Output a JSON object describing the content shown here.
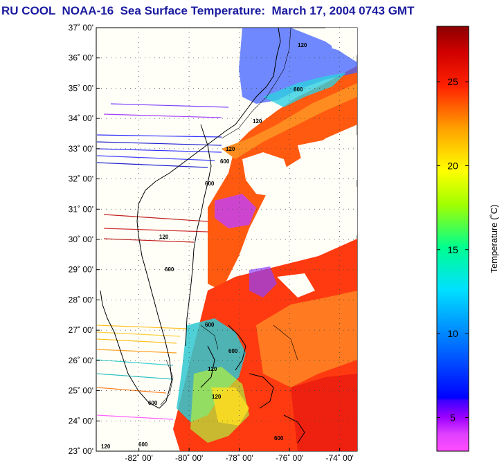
{
  "title": "RU COOL  NOAA-16  Sea Surface Temperature:  March 17, 2004 0743 GMT",
  "map": {
    "lat_ticks": [
      "37˚ 00'",
      "36˚ 00'",
      "35˚ 00'",
      "34˚ 00'",
      "33˚ 00'",
      "32˚ 00'",
      "31˚ 00'",
      "30˚ 00'",
      "29˚ 00'",
      "28˚ 00'",
      "27˚ 00'",
      "26˚ 00'",
      "25˚ 00'",
      "24˚ 00'",
      "23˚ 00'"
    ],
    "lon_ticks": [
      "-82˚ 00'",
      "-80˚ 00'",
      "-78˚ 00'",
      "-76˚ 00'",
      "-74˚ 00'"
    ],
    "contour_labels": [
      "120",
      "600",
      "120",
      "600",
      "120",
      "600",
      "120",
      "600",
      "600",
      "120",
      "600",
      "120",
      "600",
      "600",
      "120",
      "600"
    ],
    "lat_range": [
      23,
      37
    ],
    "lon_range": [
      -83.7,
      -73.3
    ]
  },
  "colorbar": {
    "title": "Temperature (˚C)",
    "tick_labels": [
      "25",
      "20",
      "15",
      "10",
      "5"
    ],
    "tick_values": [
      25,
      20,
      15,
      10,
      5
    ],
    "range": [
      3,
      28.3
    ],
    "colors": [
      "#ff40ff",
      "#9900ff",
      "#0000ff",
      "#00a0ff",
      "#00ffff",
      "#00ff80",
      "#b0ff00",
      "#ffff00",
      "#ffa000",
      "#ff3000",
      "#d00000",
      "#8b0000"
    ]
  }
}
